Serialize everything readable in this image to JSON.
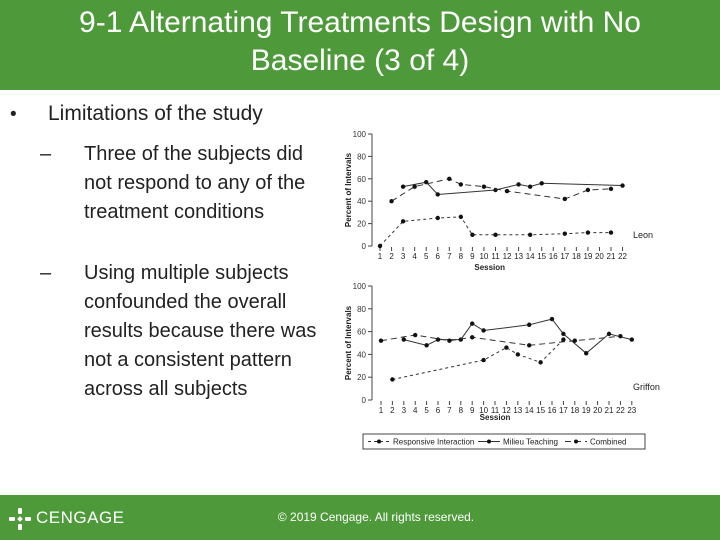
{
  "slide": {
    "title_line1": "9-1 Alternating Treatments Design with No",
    "title_line2": "Baseline (3 of 4)",
    "bullet_marker": "•",
    "bullet_text": "Limitations of the study",
    "dash_marker": "–",
    "sub_items": [
      "Three of the subjects did not respond to any of the treatment conditions",
      "Using multiple subjects confounded the overall results because there was not a consistent pattern across all subjects"
    ]
  },
  "footer": {
    "brand": "CENGAGE",
    "copyright": "© 2019 Cengage. All rights reserved."
  },
  "colors": {
    "header": "#4e9a3a",
    "text": "#222222"
  },
  "chart_data": [
    {
      "type": "line",
      "title": "Leon",
      "xlabel": "Session",
      "ylabel": "Percent of Intervals",
      "ylim": [
        0,
        100
      ],
      "yticks": [
        0,
        20,
        40,
        60,
        80,
        100
      ],
      "x_ticks": [
        1,
        2,
        3,
        4,
        5,
        6,
        7,
        8,
        9,
        10,
        11,
        12,
        13,
        14,
        15,
        16,
        17,
        18,
        19,
        20,
        21,
        22
      ],
      "series": [
        {
          "name": "Responsive Interaction",
          "x": [
            1,
            3,
            6,
            8,
            9,
            11,
            14,
            17,
            19,
            21
          ],
          "values": [
            0,
            22,
            25,
            26,
            10,
            10,
            10,
            11,
            12,
            12
          ]
        },
        {
          "name": "Milieu Teaching",
          "x": [
            3,
            5,
            6,
            11,
            13,
            14,
            15,
            22
          ],
          "values": [
            53,
            57,
            46,
            50,
            55,
            53,
            56,
            54
          ]
        },
        {
          "name": "Combined",
          "x": [
            2,
            4,
            7,
            8,
            10,
            12,
            17,
            19,
            21
          ],
          "values": [
            40,
            53,
            60,
            55,
            53,
            49,
            42,
            50,
            51
          ]
        }
      ]
    },
    {
      "type": "line",
      "title": "Griffon",
      "xlabel": "Session",
      "ylabel": "Percent of Intervals",
      "ylim": [
        0,
        100
      ],
      "yticks": [
        0,
        20,
        40,
        60,
        80,
        100
      ],
      "x_ticks": [
        1,
        2,
        3,
        4,
        5,
        6,
        7,
        8,
        9,
        10,
        11,
        12,
        13,
        14,
        15,
        16,
        17,
        18,
        19,
        20,
        21,
        22,
        23
      ],
      "series": [
        {
          "name": "Responsive Interaction",
          "x": [
            2,
            10,
            12,
            13,
            15,
            17
          ],
          "values": [
            18,
            35,
            46,
            40,
            33,
            53
          ]
        },
        {
          "name": "Milieu Teaching",
          "x": [
            3,
            5,
            6,
            8,
            9,
            10,
            14,
            16,
            17,
            19,
            21,
            23
          ],
          "values": [
            53,
            48,
            53,
            53,
            67,
            61,
            66,
            71,
            58,
            41,
            58,
            53
          ]
        },
        {
          "name": "Combined",
          "x": [
            1,
            4,
            7,
            9,
            14,
            18,
            22
          ],
          "values": [
            52,
            57,
            52,
            55,
            48,
            52,
            56
          ]
        }
      ]
    }
  ]
}
